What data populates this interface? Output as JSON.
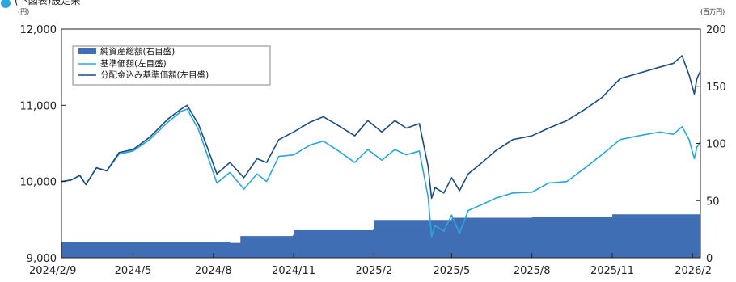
{
  "header": {
    "text": "(下図表)設定来"
  },
  "chart_data": {
    "type": "line",
    "x_range": [
      "2024-02-09",
      "2026-02-10"
    ],
    "x_ticks": [
      {
        "date": "2024-02-09",
        "label": "2024/2/9"
      },
      {
        "date": "2024-05-01",
        "label": "2024/5"
      },
      {
        "date": "2024-08-01",
        "label": "2024/8"
      },
      {
        "date": "2024-11-01",
        "label": "2024/11"
      },
      {
        "date": "2025-02-01",
        "label": "2025/2"
      },
      {
        "date": "2025-05-01",
        "label": "2025/5"
      },
      {
        "date": "2025-08-01",
        "label": "2025/8"
      },
      {
        "date": "2025-11-01",
        "label": "2025/11"
      },
      {
        "date": "2026-02-01",
        "label": "2026/2"
      }
    ],
    "y_left": {
      "unit": "(円)",
      "min": 9000,
      "max": 12000,
      "ticks": [
        "9,000",
        "10,000",
        "11,000",
        "12,000"
      ],
      "tick_values": [
        9000,
        10000,
        11000,
        12000
      ]
    },
    "y_right": {
      "unit": "(百万円)",
      "min": 0,
      "max": 200,
      "ticks": [
        "0",
        "50",
        "100",
        "150",
        "200"
      ],
      "tick_values": [
        0,
        50,
        100,
        150,
        200
      ]
    },
    "grid": false,
    "legend_position": "top-left",
    "series": [
      {
        "name": "純資産総額(右目盛)",
        "kind": "area",
        "axis": "right",
        "color": "#3f6eb5",
        "points": [
          [
            "2024-02-09",
            14
          ],
          [
            "2024-08-01",
            14
          ],
          [
            "2024-08-20",
            13
          ],
          [
            "2024-08-31",
            13
          ],
          [
            "2024-09-01",
            19
          ],
          [
            "2024-10-31",
            20
          ],
          [
            "2024-11-01",
            24
          ],
          [
            "2025-01-31",
            25
          ],
          [
            "2025-02-01",
            33
          ],
          [
            "2025-04-01",
            33
          ],
          [
            "2025-05-01",
            35
          ],
          [
            "2025-08-01",
            36
          ],
          [
            "2025-11-01",
            38
          ],
          [
            "2026-02-10",
            39
          ]
        ]
      },
      {
        "name": "基準価額(左目盛)",
        "kind": "line",
        "axis": "left",
        "color": "#2aa6dc",
        "points": [
          [
            "2024-02-09",
            10000
          ],
          [
            "2024-02-20",
            10020
          ],
          [
            "2024-03-01",
            10080
          ],
          [
            "2024-03-08",
            9960
          ],
          [
            "2024-03-20",
            10180
          ],
          [
            "2024-04-01",
            10140
          ],
          [
            "2024-04-15",
            10360
          ],
          [
            "2024-05-01",
            10400
          ],
          [
            "2024-05-20",
            10550
          ],
          [
            "2024-06-10",
            10780
          ],
          [
            "2024-06-25",
            10920
          ],
          [
            "2024-07-02",
            10950
          ],
          [
            "2024-07-15",
            10680
          ],
          [
            "2024-07-25",
            10350
          ],
          [
            "2024-08-05",
            9980
          ],
          [
            "2024-08-20",
            10120
          ],
          [
            "2024-09-05",
            9900
          ],
          [
            "2024-09-20",
            10100
          ],
          [
            "2024-10-01",
            10000
          ],
          [
            "2024-10-15",
            10330
          ],
          [
            "2024-11-01",
            10350
          ],
          [
            "2024-11-20",
            10480
          ],
          [
            "2024-12-05",
            10530
          ],
          [
            "2024-12-20",
            10420
          ],
          [
            "2025-01-10",
            10250
          ],
          [
            "2025-01-25",
            10420
          ],
          [
            "2025-02-10",
            10280
          ],
          [
            "2025-02-25",
            10420
          ],
          [
            "2025-03-10",
            10350
          ],
          [
            "2025-03-25",
            10400
          ],
          [
            "2025-04-04",
            9800
          ],
          [
            "2025-04-08",
            9280
          ],
          [
            "2025-04-12",
            9420
          ],
          [
            "2025-04-22",
            9350
          ],
          [
            "2025-05-01",
            9560
          ],
          [
            "2025-05-10",
            9320
          ],
          [
            "2025-05-20",
            9620
          ],
          [
            "2025-06-05",
            9700
          ],
          [
            "2025-06-20",
            9780
          ],
          [
            "2025-07-10",
            9850
          ],
          [
            "2025-08-01",
            9860
          ],
          [
            "2025-08-20",
            9980
          ],
          [
            "2025-09-10",
            10000
          ],
          [
            "2025-10-01",
            10180
          ],
          [
            "2025-10-20",
            10350
          ],
          [
            "2025-11-10",
            10550
          ],
          [
            "2025-12-01",
            10600
          ],
          [
            "2025-12-25",
            10650
          ],
          [
            "2026-01-10",
            10620
          ],
          [
            "2026-01-20",
            10720
          ],
          [
            "2026-01-28",
            10550
          ],
          [
            "2026-02-03",
            10300
          ],
          [
            "2026-02-06",
            10450
          ],
          [
            "2026-02-10",
            10520
          ]
        ]
      },
      {
        "name": "分配金込み基準価額(左目盛)",
        "kind": "line",
        "axis": "left",
        "color": "#1b4d80",
        "points": [
          [
            "2024-02-09",
            10000
          ],
          [
            "2024-02-20",
            10020
          ],
          [
            "2024-03-01",
            10080
          ],
          [
            "2024-03-08",
            9960
          ],
          [
            "2024-03-20",
            10180
          ],
          [
            "2024-04-01",
            10140
          ],
          [
            "2024-04-15",
            10380
          ],
          [
            "2024-05-01",
            10420
          ],
          [
            "2024-05-20",
            10580
          ],
          [
            "2024-06-10",
            10820
          ],
          [
            "2024-06-25",
            10950
          ],
          [
            "2024-07-02",
            11000
          ],
          [
            "2024-07-15",
            10750
          ],
          [
            "2024-07-25",
            10450
          ],
          [
            "2024-08-05",
            10100
          ],
          [
            "2024-08-20",
            10250
          ],
          [
            "2024-09-05",
            10050
          ],
          [
            "2024-09-20",
            10300
          ],
          [
            "2024-10-01",
            10250
          ],
          [
            "2024-10-15",
            10550
          ],
          [
            "2024-11-01",
            10650
          ],
          [
            "2024-11-20",
            10780
          ],
          [
            "2024-12-05",
            10850
          ],
          [
            "2024-12-20",
            10750
          ],
          [
            "2025-01-10",
            10600
          ],
          [
            "2025-01-25",
            10800
          ],
          [
            "2025-02-10",
            10650
          ],
          [
            "2025-02-25",
            10800
          ],
          [
            "2025-03-10",
            10700
          ],
          [
            "2025-03-25",
            10760
          ],
          [
            "2025-04-04",
            10200
          ],
          [
            "2025-04-08",
            9780
          ],
          [
            "2025-04-12",
            9920
          ],
          [
            "2025-04-22",
            9850
          ],
          [
            "2025-05-01",
            10050
          ],
          [
            "2025-05-10",
            9880
          ],
          [
            "2025-05-20",
            10100
          ],
          [
            "2025-06-05",
            10250
          ],
          [
            "2025-06-20",
            10400
          ],
          [
            "2025-07-10",
            10550
          ],
          [
            "2025-08-01",
            10600
          ],
          [
            "2025-08-20",
            10700
          ],
          [
            "2025-09-10",
            10800
          ],
          [
            "2025-10-01",
            10950
          ],
          [
            "2025-10-20",
            11100
          ],
          [
            "2025-11-10",
            11350
          ],
          [
            "2025-12-01",
            11420
          ],
          [
            "2025-12-25",
            11500
          ],
          [
            "2026-01-10",
            11550
          ],
          [
            "2026-01-20",
            11650
          ],
          [
            "2026-01-28",
            11400
          ],
          [
            "2026-02-03",
            11150
          ],
          [
            "2026-02-06",
            11350
          ],
          [
            "2026-02-10",
            11450
          ]
        ]
      }
    ]
  }
}
